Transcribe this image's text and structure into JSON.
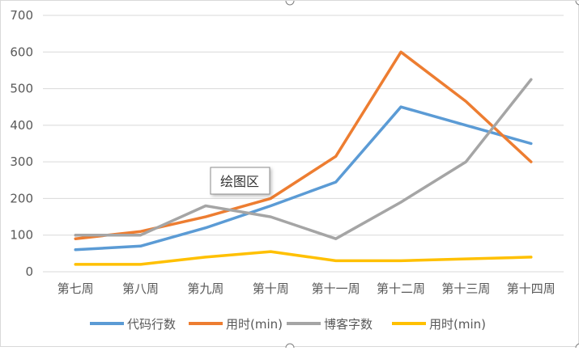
{
  "chart_data": {
    "type": "line",
    "categories": [
      "第七周",
      "第八周",
      "第九周",
      "第十周",
      "第十一周",
      "第十二周",
      "第十三周",
      "第十四周"
    ],
    "ylim": [
      0,
      700
    ],
    "yticks": [
      0,
      100,
      200,
      300,
      400,
      500,
      600,
      700
    ],
    "grid": true,
    "legend_position": "bottom",
    "series": [
      {
        "name": "代码行数",
        "color": "#5b9bd5",
        "values": [
          60,
          70,
          120,
          180,
          245,
          450,
          400,
          350
        ]
      },
      {
        "name": "用时(min)",
        "color": "#ed7d31",
        "values": [
          90,
          110,
          150,
          200,
          315,
          600,
          465,
          300
        ]
      },
      {
        "name": "博客字数",
        "color": "#a5a5a5",
        "values": [
          100,
          100,
          180,
          150,
          90,
          190,
          300,
          525
        ]
      },
      {
        "name": "用时(min)",
        "color": "#ffc000",
        "values": [
          20,
          20,
          40,
          55,
          30,
          30,
          35,
          40
        ]
      }
    ]
  },
  "tooltip": {
    "text": "绘图区"
  }
}
